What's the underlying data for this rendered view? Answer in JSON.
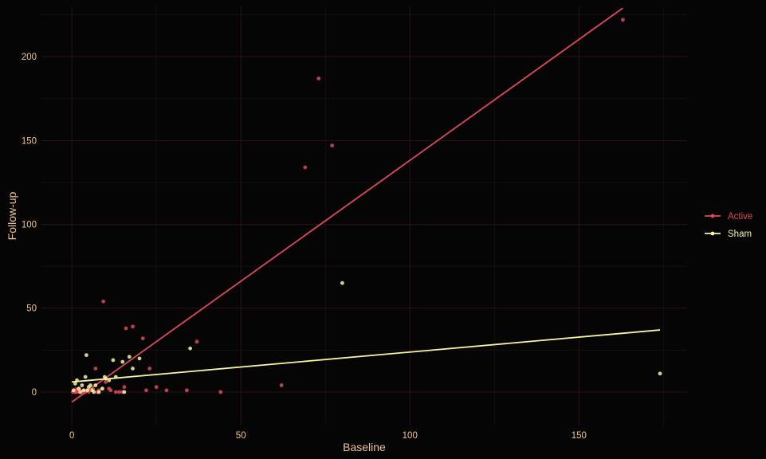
{
  "chart_data": {
    "type": "scatter",
    "title": "",
    "xlabel": "Baseline",
    "ylabel": "Follow-up",
    "xlim": [
      -9,
      182
    ],
    "ylim": [
      -20,
      230
    ],
    "x_ticks": [
      0,
      50,
      100,
      150
    ],
    "x_tick_labels": [
      "0",
      "50",
      "100",
      "150"
    ],
    "y_ticks": [
      0,
      50,
      100,
      150,
      200
    ],
    "y_tick_labels": [
      "0",
      "50",
      "100",
      "150",
      "200"
    ],
    "grid": true,
    "legend_position": "right",
    "series": [
      {
        "name": "Active",
        "color": "#e0475f",
        "points": [
          [
            0.3,
            0
          ],
          [
            0.6,
            0.3
          ],
          [
            1,
            0
          ],
          [
            1.3,
            0.5
          ],
          [
            1.6,
            0
          ],
          [
            2,
            1
          ],
          [
            2.3,
            0
          ],
          [
            2.6,
            0.5
          ],
          [
            3,
            0
          ],
          [
            3.5,
            0.8
          ],
          [
            4,
            0
          ],
          [
            4.5,
            1
          ],
          [
            5,
            0.2
          ],
          [
            1.2,
            1.5
          ],
          [
            2.2,
            2
          ],
          [
            3.2,
            0.4
          ],
          [
            6.3,
            1.5
          ],
          [
            7,
            14
          ],
          [
            7.5,
            0
          ],
          [
            8,
            1
          ],
          [
            9,
            2
          ],
          [
            9.3,
            54
          ],
          [
            10,
            6
          ],
          [
            11,
            2
          ],
          [
            11.5,
            1
          ],
          [
            13,
            0
          ],
          [
            14,
            0
          ],
          [
            15,
            0
          ],
          [
            15.5,
            3
          ],
          [
            16,
            38
          ],
          [
            18,
            39
          ],
          [
            21,
            32
          ],
          [
            22,
            1
          ],
          [
            23,
            14
          ],
          [
            25,
            3
          ],
          [
            28,
            1
          ],
          [
            34,
            1
          ],
          [
            37,
            30
          ],
          [
            44,
            0
          ],
          [
            62,
            4
          ],
          [
            69,
            134
          ],
          [
            73,
            187
          ],
          [
            77,
            147
          ],
          [
            163,
            222
          ]
        ],
        "fit": {
          "x": [
            0,
            163
          ],
          "y": [
            -6,
            229
          ]
        }
      },
      {
        "name": "Sham",
        "color": "#f7f3a0",
        "points": [
          [
            0.5,
            1
          ],
          [
            1,
            5
          ],
          [
            1.5,
            7
          ],
          [
            2,
            2
          ],
          [
            2.5,
            0
          ],
          [
            3,
            4
          ],
          [
            3.5,
            1
          ],
          [
            4,
            9
          ],
          [
            4.3,
            22
          ],
          [
            4.6,
            1
          ],
          [
            5,
            3
          ],
          [
            5.5,
            4
          ],
          [
            6,
            1
          ],
          [
            6.5,
            0
          ],
          [
            7,
            4
          ],
          [
            8,
            0
          ],
          [
            9,
            2
          ],
          [
            9.7,
            9
          ],
          [
            10,
            8
          ],
          [
            11,
            7
          ],
          [
            12.2,
            19
          ],
          [
            13,
            9
          ],
          [
            15,
            18
          ],
          [
            15.5,
            0
          ],
          [
            17,
            21
          ],
          [
            18,
            14
          ],
          [
            20,
            20
          ],
          [
            35,
            26
          ],
          [
            80,
            65
          ],
          [
            174,
            11
          ]
        ],
        "fit": {
          "x": [
            0,
            174
          ],
          "y": [
            6,
            37
          ]
        }
      }
    ]
  }
}
